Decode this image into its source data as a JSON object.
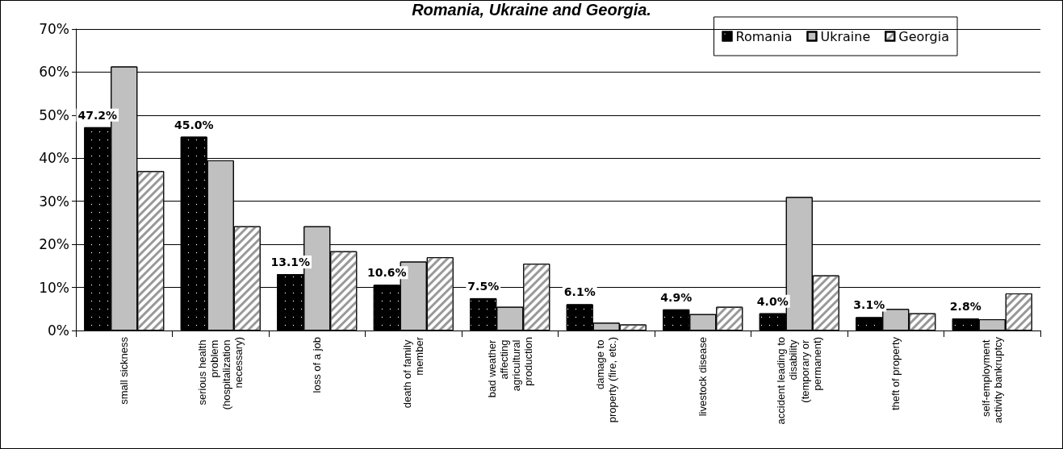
{
  "chart_data": {
    "type": "bar",
    "title": "Romania, Ukraine and Georgia.",
    "categories": [
      "small sickness",
      "serious health problem (hospitalization necessary)",
      "loss of a job",
      "death of family member",
      "bad weather affecting agricultural production",
      "damage to property (fire, etc.)",
      "livestock disease",
      "accident leading to disability (temporary or permanent)",
      "theft of property",
      "self-employment activity bankruptcy"
    ],
    "series": [
      {
        "name": "Romania",
        "color": "#000000",
        "values": [
          47.2,
          45.0,
          13.1,
          10.6,
          7.5,
          6.1,
          4.9,
          4.0,
          3.1,
          2.8
        ],
        "value_labels": [
          "47.2%",
          "45.0%",
          "13.1%",
          "10.6%",
          "7.5%",
          "6.1%",
          "4.9%",
          "4.0%",
          "3.1%",
          "2.8%"
        ]
      },
      {
        "name": "Ukraine",
        "color": "#c0c0c0",
        "values": [
          61.3,
          39.5,
          24.2,
          16.0,
          5.5,
          1.8,
          3.8,
          31.0,
          5.0,
          2.6
        ]
      },
      {
        "name": "Georgia",
        "color": "#ffffff",
        "values": [
          37.0,
          24.2,
          18.4,
          17.0,
          15.5,
          1.4,
          5.5,
          12.8,
          4.0,
          8.6
        ]
      }
    ],
    "ylim": [
      0,
      70
    ],
    "yticks": [
      {
        "value": 0,
        "label": "0%"
      },
      {
        "value": 10,
        "label": "10%"
      },
      {
        "value": 20,
        "label": "20%"
      },
      {
        "value": 30,
        "label": "30%"
      },
      {
        "value": 40,
        "label": "40%"
      },
      {
        "value": 50,
        "label": "50%"
      },
      {
        "value": 60,
        "label": "60%"
      },
      {
        "value": 70,
        "label": "70%"
      }
    ],
    "grid": "y",
    "legend": "top right"
  }
}
